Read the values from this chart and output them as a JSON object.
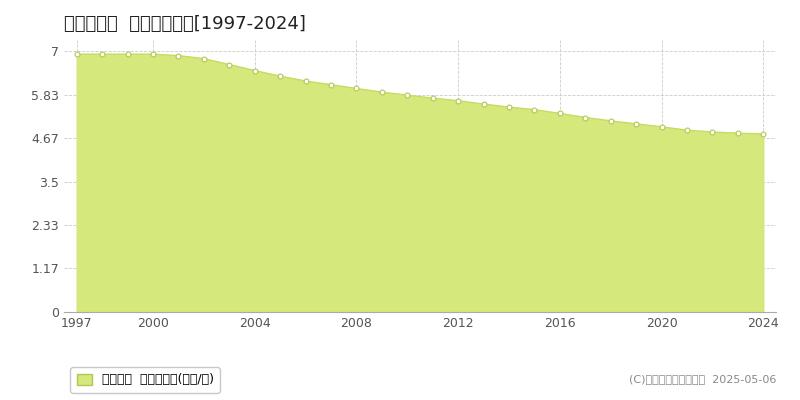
{
  "title": "舞鶴市今田  基準地価推移[1997-2024]",
  "years": [
    1997,
    1998,
    1999,
    2000,
    2001,
    2002,
    2003,
    2004,
    2005,
    2006,
    2007,
    2008,
    2009,
    2010,
    2011,
    2012,
    2013,
    2014,
    2015,
    2016,
    2017,
    2018,
    2019,
    2020,
    2021,
    2022,
    2023,
    2024
  ],
  "values": [
    6.92,
    6.92,
    6.92,
    6.92,
    6.88,
    6.8,
    6.64,
    6.48,
    6.33,
    6.2,
    6.1,
    6.0,
    5.9,
    5.82,
    5.74,
    5.67,
    5.58,
    5.5,
    5.43,
    5.33,
    5.22,
    5.13,
    5.05,
    4.97,
    4.88,
    4.83,
    4.8,
    4.78
  ],
  "yticks": [
    0,
    1.17,
    2.33,
    3.5,
    4.67,
    5.83,
    7
  ],
  "ytick_labels": [
    "0",
    "1.17",
    "2.33",
    "3.5",
    "4.67",
    "5.83",
    "7"
  ],
  "xticks": [
    1997,
    2000,
    2004,
    2008,
    2012,
    2016,
    2020,
    2024
  ],
  "ylim": [
    0,
    7.3
  ],
  "xlim": [
    1996.5,
    2024.5
  ],
  "line_color": "#c8dc64",
  "fill_color": "#d4e87c",
  "marker_facecolor": "#ffffff",
  "marker_edgecolor": "#b0c850",
  "grid_color": "#cccccc",
  "background_color": "#ffffff",
  "legend_label": "基準地価  平均坪単価(万円/坪)",
  "copyright_text": "(C)土地価格ドットコム  2025-05-06",
  "title_fontsize": 13,
  "axis_fontsize": 9,
  "legend_fontsize": 9,
  "copyright_fontsize": 8
}
